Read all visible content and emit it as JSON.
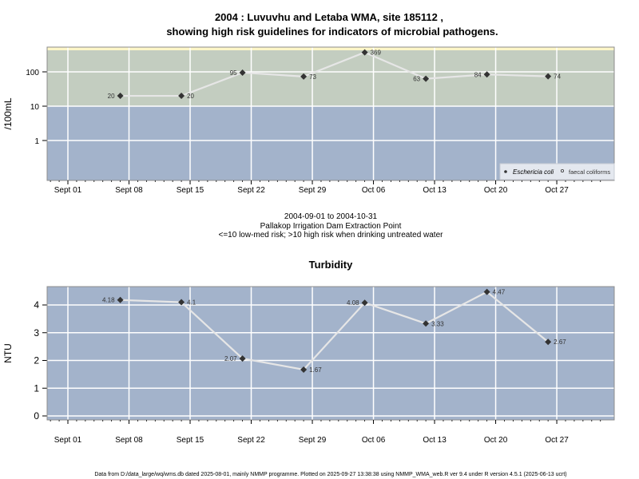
{
  "title_line1": "2004 : Luvuvhu and Letaba WMA, site 185112 ,",
  "title_line2": "showing high risk guidelines for indicators of microbial pathogens.",
  "subtitle": {
    "date_range": "2004-09-01 to 2004-10-31",
    "location": "Pallakop Irrigation Dam Extraction Point",
    "risk_note": "<=10 low-med risk; >10 high risk when drinking untreated water"
  },
  "footer": "Data from D:/data_large/wq/wms.db dated 2025-08-01, mainly NMMP programme. Plotted on 2025-09-27 13:38:38 using NMMP_WMA_web.R ver 9.4 under R version 4.5.1 (2025-06-13 ucrt)",
  "colors": {
    "high_risk_zone": "#c3cdc0",
    "low_risk_zone": "#a3b3cb",
    "top_band": "#fdf6c8",
    "line": "#e6e6e6",
    "point": "#333333",
    "grid": "#ffffff"
  },
  "chart_data": [
    {
      "type": "line",
      "title": "",
      "xlabel": "",
      "ylabel": "/100mL",
      "yscale": "log",
      "ylim": [
        0.07,
        450
      ],
      "xlim": [
        "2004-08-29",
        "2004-11-01"
      ],
      "yticks": [
        "1",
        "10",
        "100"
      ],
      "ytick_values": [
        1,
        10,
        100
      ],
      "xticks": [
        "Sept 01",
        "Sept 08",
        "Sept 15",
        "Sept 22",
        "Sept 29",
        "Oct 06",
        "Oct 13",
        "Oct 20",
        "Oct 27"
      ],
      "xtick_dates": [
        "2004-09-01",
        "2004-09-08",
        "2004-09-15",
        "2004-09-22",
        "2004-09-29",
        "2004-10-06",
        "2004-10-13",
        "2004-10-20",
        "2004-10-27"
      ],
      "grid": true,
      "threshold": 10,
      "legend": {
        "position": "bottom-right",
        "entries": [
          {
            "label": "Eschericia coli",
            "marker": "filled-diamond"
          },
          {
            "label": "faecal coliforms",
            "marker": "open-circle"
          }
        ]
      },
      "series": [
        {
          "name": "Eschericia coli",
          "x": [
            "2004-09-07",
            "2004-09-14",
            "2004-09-21",
            "2004-09-28",
            "2004-10-05",
            "2004-10-12",
            "2004-10-19",
            "2004-10-26"
          ],
          "values": [
            20,
            20,
            95,
            73,
            369,
            63,
            84,
            74
          ],
          "labels": [
            "20",
            "20",
            "95",
            "73",
            "369",
            "63",
            "84",
            "74"
          ],
          "label_side": [
            "left",
            "right",
            "left",
            "right",
            "right",
            "left",
            "left",
            "right"
          ]
        }
      ]
    },
    {
      "type": "line",
      "title": "Turbidity",
      "xlabel": "",
      "ylabel": "NTU",
      "ylim": [
        -0.15,
        4.65
      ],
      "xlim": [
        "2004-08-29",
        "2004-11-01"
      ],
      "yticks": [
        "0",
        "1",
        "2",
        "3",
        "4"
      ],
      "ytick_values": [
        0,
        1,
        2,
        3,
        4
      ],
      "xticks": [
        "Sept 01",
        "Sept 08",
        "Sept 15",
        "Sept 22",
        "Sept 29",
        "Oct 06",
        "Oct 13",
        "Oct 20",
        "Oct 27"
      ],
      "xtick_dates": [
        "2004-09-01",
        "2004-09-08",
        "2004-09-15",
        "2004-09-22",
        "2004-09-29",
        "2004-10-06",
        "2004-10-13",
        "2004-10-20",
        "2004-10-27"
      ],
      "grid": true,
      "series": [
        {
          "name": "Turbidity",
          "x": [
            "2004-09-07",
            "2004-09-14",
            "2004-09-21",
            "2004-09-28",
            "2004-10-05",
            "2004-10-12",
            "2004-10-19",
            "2004-10-26"
          ],
          "values": [
            4.18,
            4.1,
            2.07,
            1.67,
            4.08,
            3.33,
            4.47,
            2.67
          ],
          "labels": [
            "4.18",
            "4.1",
            "2.07",
            "1.67",
            "4.08",
            "3.33",
            "4.47",
            "2.67"
          ],
          "label_side": [
            "left",
            "right",
            "left",
            "right",
            "left",
            "right",
            "right",
            "right"
          ]
        }
      ]
    }
  ]
}
